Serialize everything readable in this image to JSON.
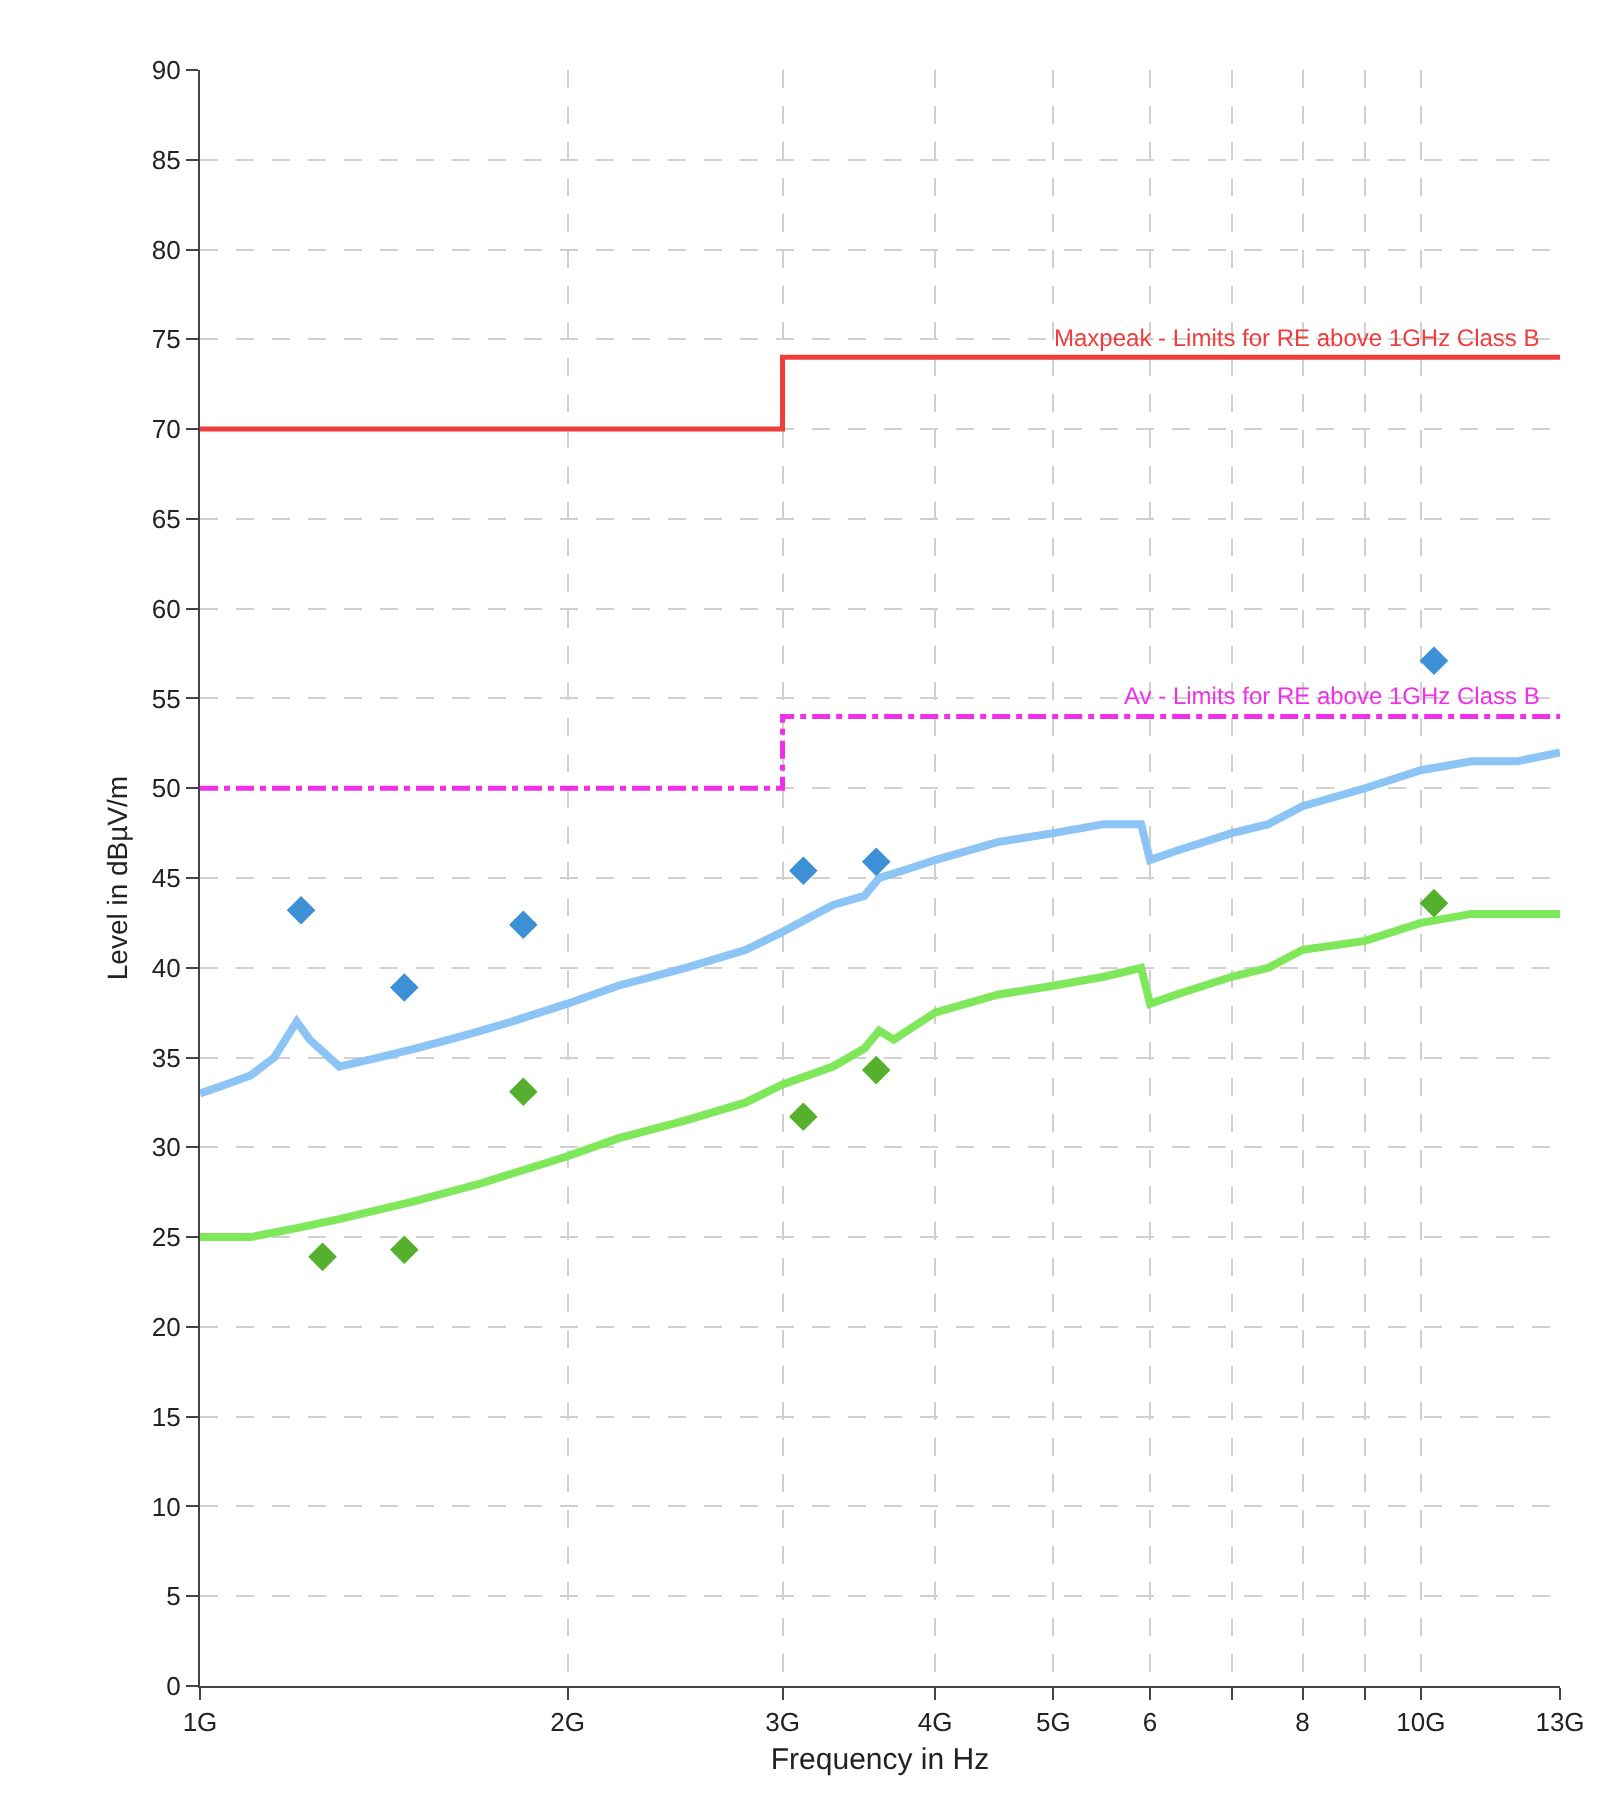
{
  "chart_data": {
    "type": "line",
    "xlabel": "Frequency in Hz",
    "ylabel": "Level in dBµV/m",
    "log": "x",
    "grid": true,
    "legend": false,
    "xlim": [
      1,
      13
    ],
    "xticks": [
      {
        "value": 1,
        "label": "1G"
      },
      {
        "value": 2,
        "label": "2G"
      },
      {
        "value": 3,
        "label": "3G"
      },
      {
        "value": 4,
        "label": "4G"
      },
      {
        "value": 5,
        "label": "5G"
      },
      6,
      {
        "value": 7,
        "label": null
      },
      8,
      {
        "value": 9,
        "label": null
      },
      {
        "value": 10,
        "label": "10G"
      },
      {
        "value": 13,
        "label": "13G"
      }
    ],
    "ylim": [
      0,
      90
    ],
    "yticks": [
      0,
      5,
      10,
      15,
      20,
      25,
      30,
      35,
      40,
      45,
      50,
      55,
      60,
      65,
      70,
      75,
      80,
      85,
      90
    ],
    "series": [
      {
        "color": "#8cc4f5",
        "x": [
          1,
          1.05,
          1.1,
          1.15,
          1.2,
          1.23,
          1.3,
          1.4,
          1.5,
          1.6,
          1.7,
          1.8,
          2,
          2.2,
          2.5,
          2.8,
          3,
          3.3,
          3.5,
          3.6,
          3.8,
          4,
          4.5,
          5,
          5.5,
          5.9,
          6,
          6.3,
          7,
          7.5,
          8,
          9,
          10,
          11,
          12,
          13
        ],
        "values": [
          33,
          33.5,
          34,
          35,
          37,
          36,
          34.5,
          35,
          35.5,
          36,
          36.5,
          37,
          38,
          39,
          40,
          41,
          42,
          43.5,
          44,
          45,
          45.5,
          46,
          47,
          47.5,
          48,
          48,
          46,
          46.5,
          47.5,
          48,
          49,
          50,
          51,
          51.5,
          51.5,
          52
        ]
      },
      {
        "color": "#7ee85a",
        "x": [
          1,
          1.1,
          1.2,
          1.3,
          1.5,
          1.7,
          2,
          2.2,
          2.5,
          2.8,
          3,
          3.3,
          3.5,
          3.6,
          3.7,
          4,
          4.5,
          5,
          5.5,
          5.9,
          6,
          6.3,
          7,
          7.5,
          8,
          9,
          10,
          11,
          12,
          13
        ],
        "values": [
          25,
          25,
          25.5,
          26,
          27,
          28,
          29.5,
          30.5,
          31.5,
          32.5,
          33.5,
          34.5,
          35.5,
          36.5,
          36,
          37.5,
          38.5,
          39,
          39.5,
          40,
          38,
          38.5,
          39.5,
          40,
          41,
          41.5,
          42.5,
          43,
          43,
          43
        ]
      },
      {
        "type": "scatter",
        "marker": "diamond",
        "color": "#3d8fd6",
        "x": [
          1.21,
          1.47,
          1.84,
          3.12,
          3.58,
          10.25
        ],
        "values": [
          43.2,
          38.9,
          42.4,
          45.4,
          45.9,
          57.1
        ]
      },
      {
        "type": "scatter",
        "marker": "diamond",
        "color": "#55b02e",
        "x": [
          1.26,
          1.47,
          1.84,
          3.12,
          3.58,
          10.25
        ],
        "values": [
          23.9,
          24.3,
          33.1,
          31.7,
          34.3,
          43.6
        ]
      },
      {
        "type": "step",
        "name": "Maxpeak - Limits for RE above 1GHz Class B",
        "color": "#f03c3c",
        "line_style": "solid",
        "x": [
          1,
          3,
          13
        ],
        "values": [
          70,
          74,
          74
        ]
      },
      {
        "type": "step",
        "name": "Av - Limits for RE above 1GHz Class B",
        "color": "#f030e8",
        "line_style": "dashdot",
        "x": [
          1,
          3,
          13
        ],
        "values": [
          50,
          54,
          54
        ]
      }
    ]
  }
}
